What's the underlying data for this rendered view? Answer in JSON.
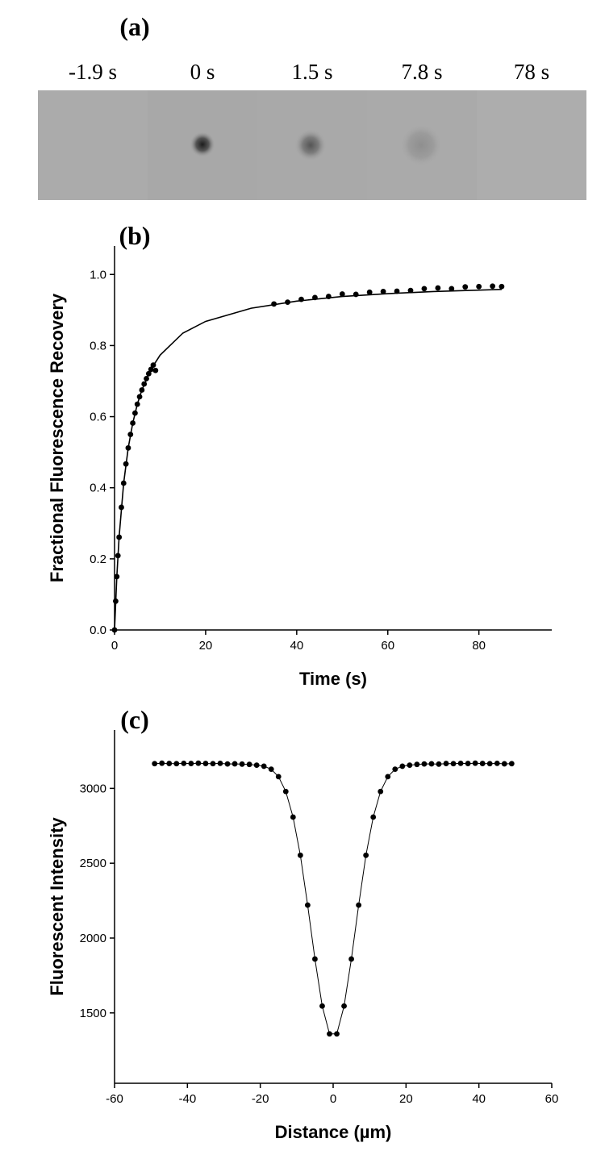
{
  "panel_a": {
    "label": "(a)",
    "frames": [
      "-1.9 s",
      "0 s",
      "1.5 s",
      "7.8 s",
      "78 s"
    ]
  },
  "chart_data": [
    {
      "type": "scatter",
      "title": "(b)",
      "x_label": "Time (s)",
      "y_label": "Fractional Fluorescence Recovery",
      "xlim": [
        0,
        96
      ],
      "ylim": [
        0,
        1.08
      ],
      "xticks": [
        0,
        20,
        40,
        60,
        80
      ],
      "yticks": [
        {
          "value": 0,
          "label": "0.0"
        },
        0.2,
        0.4,
        0.6,
        0.8,
        {
          "value": 1,
          "label": "1.0"
        }
      ],
      "series": [
        {
          "color": "#000000",
          "markers": true,
          "line": false,
          "x": [
            0,
            0.25,
            0.5,
            0.75,
            1,
            1.5,
            2,
            2.5,
            3,
            3.5,
            4,
            4.5,
            5,
            5.5,
            6,
            6.5,
            7,
            7.5,
            8,
            8.5,
            9,
            35,
            38,
            41,
            44,
            47,
            50,
            53,
            56,
            59,
            62,
            65,
            68,
            71,
            74,
            77,
            80,
            83,
            85
          ],
          "values": [
            0,
            0.081,
            0.15,
            0.209,
            0.261,
            0.345,
            0.413,
            0.467,
            0.512,
            0.55,
            0.582,
            0.61,
            0.635,
            0.656,
            0.675,
            0.692,
            0.707,
            0.721,
            0.733,
            0.745,
            0.73,
            0.917,
            0.922,
            0.93,
            0.935,
            0.938,
            0.945,
            0.944,
            0.95,
            0.952,
            0.953,
            0.955,
            0.96,
            0.962,
            0.96,
            0.965,
            0.966,
            0.967,
            0.966
          ]
        },
        {
          "color": "#000000",
          "markers": false,
          "line": true,
          "x": [
            0,
            0.5,
            1,
            2,
            3,
            4,
            5,
            6,
            8,
            10,
            15,
            20,
            30,
            40,
            50,
            60,
            70,
            85
          ],
          "values": [
            0,
            0.15,
            0.261,
            0.413,
            0.512,
            0.582,
            0.635,
            0.675,
            0.733,
            0.773,
            0.835,
            0.868,
            0.905,
            0.925,
            0.938,
            0.946,
            0.952,
            0.958
          ]
        }
      ]
    },
    {
      "type": "scatter",
      "title": "(c)",
      "x_label": "Distance (µm)",
      "y_label": "Fluorescent Intensity",
      "xlim": [
        -60,
        60
      ],
      "ylim": [
        1030,
        3390
      ],
      "xticks": [
        -60,
        -40,
        -20,
        0,
        20,
        40,
        60
      ],
      "yticks": [
        1500,
        2000,
        2500,
        3000
      ],
      "series": [
        {
          "color": "#000000",
          "markers": true,
          "line": true,
          "x": [
            -49,
            -47,
            -45,
            -43,
            -41,
            -39,
            -37,
            -35,
            -33,
            -31,
            -29,
            -27,
            -25,
            -23,
            -21,
            -19,
            -17,
            -15,
            -13,
            -11,
            -9,
            -7,
            -5,
            -3,
            -1,
            1,
            3,
            5,
            7,
            9,
            11,
            13,
            15,
            17,
            19,
            21,
            23,
            25,
            27,
            29,
            31,
            33,
            35,
            37,
            39,
            41,
            43,
            45,
            47,
            49
          ],
          "values": [
            3165,
            3168,
            3166,
            3165,
            3167,
            3166,
            3168,
            3166,
            3165,
            3167,
            3163,
            3164,
            3162,
            3160,
            3155,
            3148,
            3128,
            3078,
            2979,
            2808,
            2553,
            2220,
            1860,
            1546,
            1360,
            1360,
            1546,
            1860,
            2220,
            2553,
            2808,
            2979,
            3078,
            3128,
            3148,
            3155,
            3160,
            3163,
            3164,
            3162,
            3166,
            3165,
            3167,
            3166,
            3168,
            3166,
            3165,
            3167,
            3164,
            3165
          ]
        }
      ]
    }
  ]
}
